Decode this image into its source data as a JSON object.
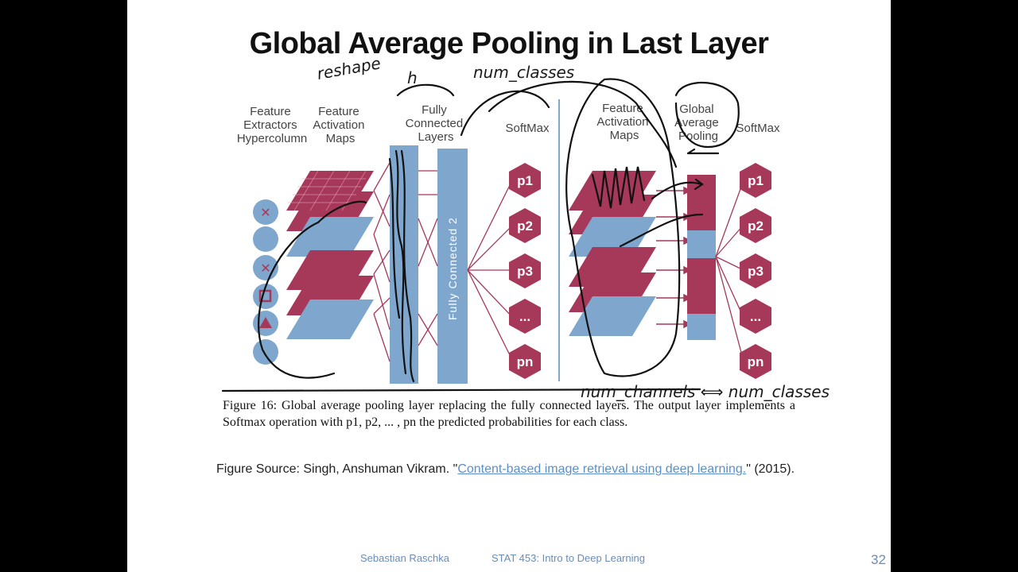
{
  "slide": {
    "title": "Global Average Pooling in Last Layer",
    "figure": {
      "labels": {
        "feature_extractors": [
          "Feature",
          "Extractors",
          "Hypercolumn"
        ],
        "feature_activation_maps_left": [
          "Feature",
          "Activation",
          "Maps"
        ],
        "fully_connected_layers": [
          "Fully",
          "Connected",
          "Layers"
        ],
        "softmax_left": "SoftMax",
        "feature_activation_maps_right": [
          "Feature",
          "Activation",
          "Maps"
        ],
        "global_average_pooling": [
          "Global",
          "Average",
          "Pooling"
        ],
        "softmax_right": "SoftMax",
        "fc2_label": "Fully Connected 2",
        "outputs": [
          "p1",
          "p2",
          "p3",
          "...",
          "pn"
        ]
      },
      "colors": {
        "crimson": "#a6385a",
        "blue": "#7fa7cd",
        "node_dark": "#5a2535"
      }
    },
    "caption": "Figure 16: Global average pooling layer replacing the fully connected layers. The output layer implements a Softmax operation with p1, p2, ... , pn the predicted probabilities for each class.",
    "source": {
      "prefix": "Figure Source: Singh, Anshuman Vikram. \"",
      "link_text": "Content-based image retrieval using deep learning.",
      "suffix": "\" (2015)."
    },
    "handwriting": {
      "reshape": "reshape",
      "h": "h",
      "num_classes_top": "num_classes",
      "num_channels_eq": "num_channels ⟺ num_classes"
    },
    "footer": {
      "author": "Sebastian Raschka",
      "course": "STAT 453: Intro to Deep Learning",
      "page": "32"
    }
  }
}
